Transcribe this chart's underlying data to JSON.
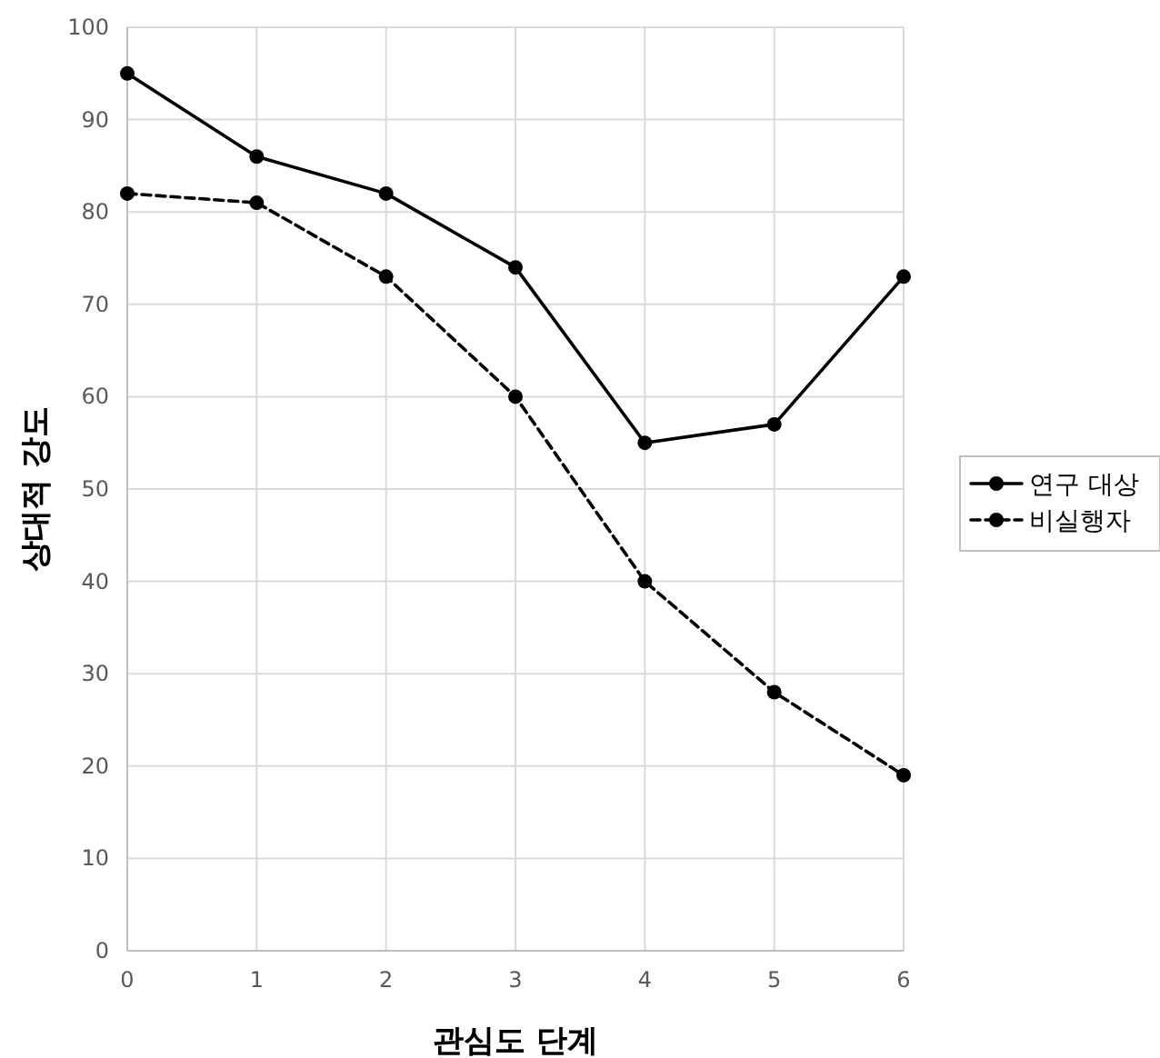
{
  "chart_data": {
    "type": "line",
    "xlabel": "관심도 단계",
    "ylabel": "상대적 강도",
    "x": [
      0,
      1,
      2,
      3,
      4,
      5,
      6
    ],
    "series": [
      {
        "name": "연구 대상",
        "color": "#000000",
        "line_style": "solid",
        "values": [
          95,
          86,
          82,
          74,
          55,
          57,
          73
        ]
      },
      {
        "name": "비실행자",
        "color": "#000000",
        "line_style": "dashed",
        "values": [
          82,
          81,
          73,
          60,
          40,
          28,
          19
        ]
      }
    ],
    "xlim": [
      0,
      6
    ],
    "ylim": [
      0,
      100
    ],
    "xticks": [
      0,
      1,
      2,
      3,
      4,
      5,
      6
    ],
    "yticks": [
      0,
      10,
      20,
      30,
      40,
      50,
      60,
      70,
      80,
      90,
      100
    ],
    "grid": true,
    "legend": "right",
    "marker": "circle"
  }
}
